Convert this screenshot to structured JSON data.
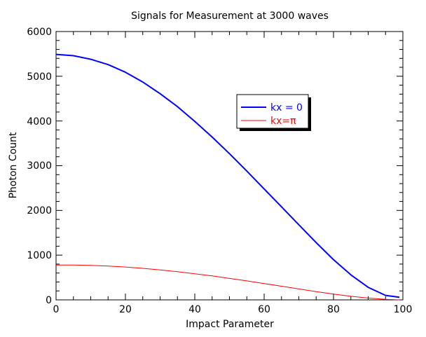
{
  "chart_data": {
    "type": "line",
    "title": "Signals for Measurement at 3000 waves",
    "xlabel": "Impact Parameter",
    "ylabel": "Photon Count",
    "xlim": [
      0,
      100
    ],
    "ylim": [
      0,
      6000
    ],
    "xticks": [
      "0",
      "20",
      "40",
      "60",
      "80",
      "100"
    ],
    "yticks": [
      "0",
      "1000",
      "2000",
      "3000",
      "4000",
      "5000",
      "6000"
    ],
    "grid": false,
    "legend_position": "upper-right-center",
    "series": [
      {
        "name": "kx = 0",
        "color": "#0000ff",
        "x": [
          0,
          5,
          10,
          15,
          20,
          25,
          30,
          35,
          40,
          45,
          50,
          55,
          60,
          65,
          70,
          75,
          80,
          85,
          90,
          95,
          99
        ],
        "y": [
          5490,
          5460,
          5380,
          5260,
          5090,
          4870,
          4610,
          4320,
          3990,
          3640,
          3270,
          2880,
          2480,
          2080,
          1680,
          1280,
          900,
          560,
          280,
          100,
          60
        ]
      },
      {
        "name": "kx=π",
        "color": "#ff0000",
        "x": [
          0,
          5,
          10,
          15,
          20,
          25,
          30,
          35,
          40,
          45,
          50,
          55,
          60,
          65,
          70,
          75,
          80,
          85,
          90,
          95,
          99
        ],
        "y": [
          780,
          778,
          770,
          755,
          735,
          705,
          670,
          630,
          585,
          535,
          480,
          425,
          365,
          305,
          245,
          185,
          130,
          80,
          40,
          12,
          0
        ]
      }
    ]
  }
}
